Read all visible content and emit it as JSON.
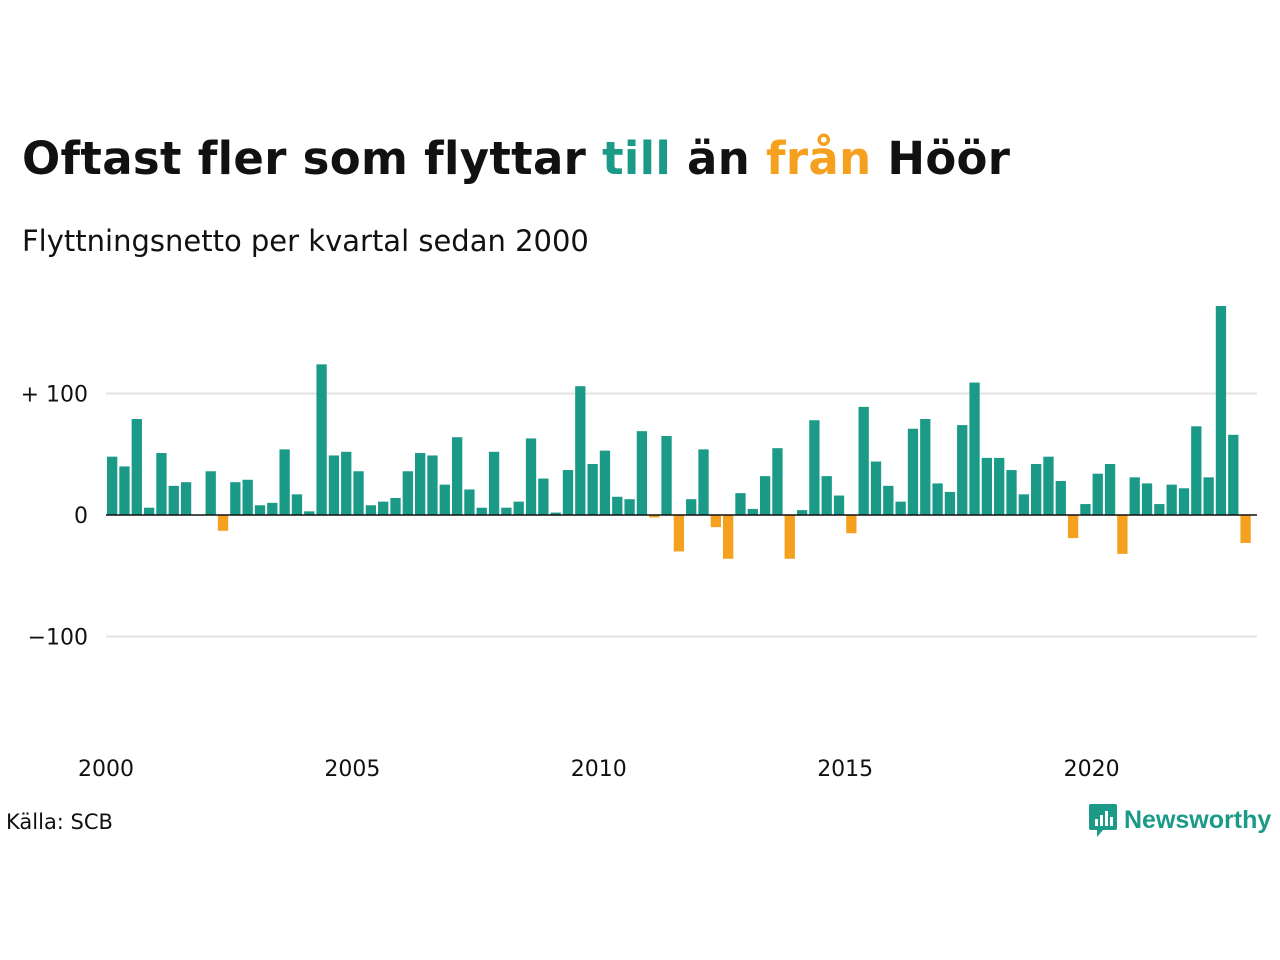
{
  "title": {
    "part1": "Oftast fler som flyttar ",
    "highlight_in": "till",
    "part2": " än ",
    "highlight_out": "från",
    "part3": " Höör"
  },
  "subtitle": "Flyttningsnetto per kvartal sedan 2000",
  "source": "Källa: SCB",
  "brand": {
    "name": "Newsworthy",
    "icon": "newsworthy-logo-icon"
  },
  "colors": {
    "positive": "#1b9a88",
    "negative": "#f5a01e",
    "grid": "#e2e2e2",
    "axis": "#111111"
  },
  "chart_data": {
    "type": "bar",
    "x_start": "2000 Q1",
    "frequency": "quarterly",
    "xticks": [
      "2000",
      "2005",
      "2010",
      "2015",
      "2020"
    ],
    "yticks": [
      {
        "value": 100,
        "label": "+ 100"
      },
      {
        "value": 0,
        "label": "0"
      },
      {
        "value": -100,
        "label": "−100"
      }
    ],
    "ylim": [
      -190,
      175
    ],
    "grid": true,
    "values": [
      48,
      40,
      79,
      6,
      51,
      24,
      27,
      0,
      36,
      -13,
      27,
      29,
      8,
      10,
      54,
      17,
      3,
      124,
      49,
      52,
      36,
      8,
      11,
      14,
      36,
      51,
      49,
      25,
      64,
      21,
      6,
      52,
      6,
      11,
      63,
      30,
      2,
      37,
      106,
      42,
      53,
      15,
      13,
      69,
      -2,
      65,
      -30,
      13,
      54,
      -10,
      -36,
      18,
      5,
      32,
      55,
      -36,
      4,
      78,
      32,
      16,
      -15,
      89,
      44,
      24,
      11,
      71,
      79,
      26,
      19,
      74,
      109,
      47,
      47,
      37,
      17,
      42,
      48,
      28,
      -19,
      9,
      34,
      42,
      -32,
      31,
      26,
      9,
      25,
      22,
      73,
      31,
      172,
      66,
      -23
    ]
  }
}
